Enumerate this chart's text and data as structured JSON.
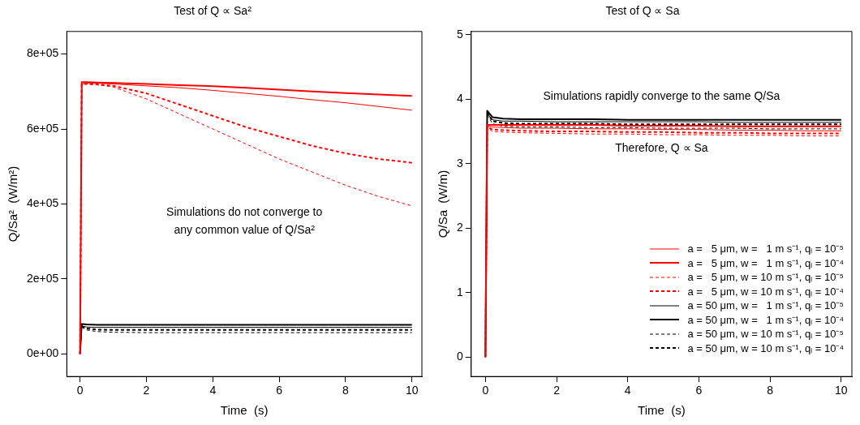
{
  "chart_data": [
    {
      "type": "line",
      "title": "Test of Q ∝ Sa²",
      "xlabel": "Time  (s)",
      "ylabel": "Q/Sa²  (W/m²)",
      "x": [
        0,
        0.05,
        0.2,
        0.5,
        1,
        2,
        3,
        4,
        5,
        6,
        7,
        8,
        9,
        10
      ],
      "xlim": [
        -0.4,
        10.3
      ],
      "xticks": [
        0,
        2,
        4,
        6,
        8,
        10
      ],
      "ylim": [
        -60000,
        860000
      ],
      "yticks": [
        {
          "value": 0,
          "label": "0e+00"
        },
        {
          "value": 200000,
          "label": "2e+05"
        },
        {
          "value": 400000,
          "label": "4e+05"
        },
        {
          "value": 600000,
          "label": "6e+05"
        },
        {
          "value": 800000,
          "label": "8e+05"
        }
      ],
      "grid": false,
      "legend": false,
      "annotations": [
        "Simulations do not converge to\nany common value of Q/Sa²"
      ],
      "series": [
        {
          "color": "#ff0000",
          "line_style": "solid",
          "values": [
            0,
            720000,
            722000,
            722000,
            720000,
            715000,
            710000,
            703000,
            695000,
            687000,
            678000,
            670000,
            660000,
            650000
          ]
        },
        {
          "color": "#ff0000",
          "line_style": "solid",
          "values": [
            0,
            725000,
            725000,
            724000,
            723000,
            720000,
            717000,
            714000,
            710000,
            705000,
            700000,
            696000,
            692000,
            688000
          ]
        },
        {
          "color": "#ff0000",
          "line_style": "dashed",
          "values": [
            0,
            720000,
            720000,
            718000,
            712000,
            680000,
            640000,
            600000,
            560000,
            520000,
            485000,
            450000,
            420000,
            395000
          ]
        },
        {
          "color": "#ff0000",
          "line_style": "dashed",
          "values": [
            0,
            720000,
            720000,
            719000,
            715000,
            695000,
            665000,
            635000,
            605000,
            580000,
            555000,
            535000,
            520000,
            510000
          ]
        },
        {
          "color": "#000000",
          "line_style": "solid",
          "values": [
            0,
            74000,
            72000,
            71000,
            71000,
            71000,
            71000,
            71000,
            71000,
            71000,
            71000,
            71000,
            71000,
            71000
          ]
        },
        {
          "color": "#000000",
          "line_style": "solid",
          "values": [
            0,
            80000,
            79000,
            78000,
            78000,
            78000,
            78000,
            78000,
            78000,
            78000,
            78000,
            78000,
            78000,
            78000
          ]
        },
        {
          "color": "#000000",
          "line_style": "dashed",
          "values": [
            null,
            72000,
            64000,
            60000,
            58000,
            57000,
            57000,
            57000,
            57000,
            57000,
            57000,
            57000,
            57000,
            57000
          ]
        },
        {
          "color": "#000000",
          "line_style": "dashed",
          "values": [
            null,
            74000,
            68000,
            65000,
            64000,
            64000,
            64000,
            64000,
            64000,
            64000,
            64000,
            64000,
            64000,
            64000
          ]
        }
      ]
    },
    {
      "type": "line",
      "title": "Test of Q ∝ Sa",
      "xlabel": "Time  (s)",
      "ylabel": "Q/Sa  (W/m)",
      "x": [
        0,
        0.05,
        0.2,
        0.5,
        1,
        2,
        3,
        4,
        5,
        6,
        7,
        8,
        9,
        10
      ],
      "xlim": [
        -0.4,
        10.3
      ],
      "xticks": [
        0,
        2,
        4,
        6,
        8,
        10
      ],
      "ylim": [
        -0.3,
        5.05
      ],
      "yticks": [
        0,
        1,
        2,
        3,
        4,
        5
      ],
      "grid": false,
      "legend": "bottom right",
      "annotations": [
        "Simulations rapidly converge to the same Q/Sa",
        "Therefore, Q ∝ Sa"
      ],
      "series": [
        {
          "name": "a =   5 μm, w =   1 m s⁻¹, qₗ = 10⁻⁵",
          "color": "#ff0000",
          "line_style": "solid",
          "values": [
            0,
            3.58,
            3.57,
            3.56,
            3.55,
            3.55,
            3.54,
            3.54,
            3.53,
            3.53,
            3.52,
            3.52,
            3.51,
            3.51
          ]
        },
        {
          "name": "a =   5 μm, w =   1 m s⁻¹, qₗ = 10⁻⁴",
          "color": "#ff0000",
          "line_style": "solid",
          "values": [
            0,
            3.6,
            3.6,
            3.6,
            3.6,
            3.6,
            3.6,
            3.59,
            3.59,
            3.59,
            3.58,
            3.58,
            3.58,
            3.58
          ]
        },
        {
          "name": "a =   5 μm, w = 10 m s⁻¹, qₗ = 10⁻⁵",
          "color": "#ff0000",
          "line_style": "dashed",
          "values": [
            0,
            3.56,
            3.5,
            3.49,
            3.48,
            3.47,
            3.46,
            3.46,
            3.45,
            3.45,
            3.44,
            3.44,
            3.43,
            3.43
          ]
        },
        {
          "name": "a =   5 μm, w = 10 m s⁻¹, qₗ = 10⁻⁴",
          "color": "#ff0000",
          "line_style": "dashed",
          "values": [
            0,
            3.57,
            3.53,
            3.52,
            3.51,
            3.5,
            3.5,
            3.49,
            3.49,
            3.48,
            3.48,
            3.47,
            3.47,
            3.47
          ]
        },
        {
          "name": "a = 50 μm, w =   1 m s⁻¹, qₗ = 10⁻⁵",
          "color": "#000000",
          "line_style": "solid",
          "values": [
            0,
            3.78,
            3.68,
            3.66,
            3.66,
            3.65,
            3.65,
            3.65,
            3.65,
            3.65,
            3.64,
            3.64,
            3.64,
            3.64
          ]
        },
        {
          "name": "a = 50 μm, w =   1 m s⁻¹, qₗ = 10⁻⁴",
          "color": "#000000",
          "line_style": "solid",
          "values": [
            0,
            3.82,
            3.72,
            3.7,
            3.69,
            3.69,
            3.69,
            3.68,
            3.68,
            3.68,
            3.68,
            3.68,
            3.68,
            3.68
          ]
        },
        {
          "name": "a = 50 μm, w = 10 m s⁻¹, qₗ = 10⁻⁵",
          "color": "#000000",
          "line_style": "dashed",
          "values": [
            null,
            3.76,
            3.62,
            3.58,
            3.57,
            3.57,
            3.56,
            3.56,
            3.55,
            3.55,
            3.55,
            3.54,
            3.54,
            3.54
          ]
        },
        {
          "name": "a = 50 μm, w = 10 m s⁻¹, qₗ = 10⁻⁴",
          "color": "#000000",
          "line_style": "dashed",
          "values": [
            null,
            3.8,
            3.66,
            3.63,
            3.62,
            3.62,
            3.62,
            3.61,
            3.61,
            3.61,
            3.61,
            3.61,
            3.61,
            3.61
          ]
        }
      ]
    }
  ]
}
